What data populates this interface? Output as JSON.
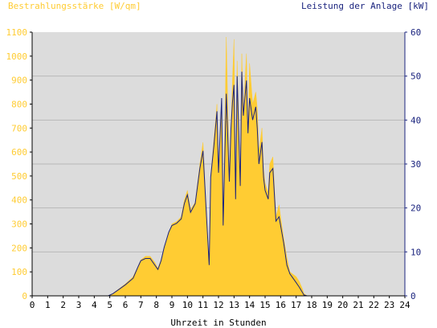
{
  "colors": {
    "irradiance": "#ffcc33",
    "power": "#1a237e",
    "plot_bg": "#dcdcdc",
    "grid": "#b8b8b8",
    "axis": "#000000"
  },
  "chart_data": {
    "type": "area",
    "left_axis_title": "Bestrahlungsstärke [W/qm]",
    "right_axis_title": "Leistung der Anlage [kW]",
    "xlabel": "Uhrzeit in Stunden",
    "xlim": [
      0,
      24
    ],
    "ylim_left": [
      0,
      1100
    ],
    "ylim_right": [
      0,
      60
    ],
    "x_ticks": [
      "0",
      "1",
      "2",
      "3",
      "4",
      "5",
      "6",
      "7",
      "8",
      "9",
      "10",
      "11",
      "12",
      "13",
      "14",
      "15",
      "16",
      "17",
      "18",
      "19",
      "20",
      "21",
      "22",
      "23",
      "24"
    ],
    "y_left_ticks": [
      "0",
      "100",
      "200",
      "300",
      "400",
      "500",
      "600",
      "700",
      "800",
      "900",
      "1000",
      "1100"
    ],
    "y_right_ticks": [
      "0",
      "10",
      "20",
      "30",
      "40",
      "50",
      "60"
    ],
    "grid": true,
    "series": [
      {
        "name": "Bestrahlungsstärke [W/qm]",
        "axis": "left",
        "style": "area",
        "x": [
          0,
          4.9,
          5.2,
          5.6,
          6.0,
          6.5,
          6.8,
          7.0,
          7.3,
          7.6,
          7.9,
          8.1,
          8.3,
          8.5,
          8.8,
          9.0,
          9.3,
          9.6,
          9.8,
          10.0,
          10.2,
          10.5,
          10.8,
          11.0,
          11.2,
          11.4,
          11.5,
          11.7,
          11.9,
          12.0,
          12.2,
          12.3,
          12.5,
          12.7,
          12.8,
          12.9,
          13.0,
          13.1,
          13.2,
          13.4,
          13.5,
          13.6,
          13.8,
          13.9,
          14.0,
          14.2,
          14.4,
          14.5,
          14.6,
          14.8,
          14.9,
          15.0,
          15.2,
          15.3,
          15.5,
          15.7,
          15.9,
          16.0,
          16.2,
          16.4,
          16.6,
          16.8,
          17.0,
          17.2,
          17.4,
          17.5,
          17.7,
          17.9,
          18.0,
          18.2,
          18.4,
          18.5,
          18.7,
          19.0,
          19.3,
          19.6,
          20.0,
          20.3,
          20.6,
          21,
          24
        ],
        "y": [
          0,
          0,
          10,
          30,
          50,
          80,
          120,
          150,
          165,
          165,
          140,
          115,
          150,
          200,
          260,
          300,
          310,
          330,
          400,
          440,
          360,
          390,
          550,
          640,
          380,
          130,
          500,
          650,
          800,
          520,
          820,
          300,
          1080,
          480,
          700,
          900,
          1070,
          400,
          980,
          470,
          1010,
          760,
          1010,
          680,
          970,
          800,
          850,
          780,
          600,
          700,
          530,
          470,
          430,
          550,
          580,
          330,
          380,
          330,
          240,
          160,
          100,
          90,
          80,
          60,
          30,
          10,
          0,
          0,
          0,
          0,
          0,
          0,
          0,
          0,
          0,
          0,
          0,
          0,
          0,
          0,
          0
        ]
      },
      {
        "name": "Leistung der Anlage [kW]",
        "axis": "right",
        "style": "line",
        "x": [
          0,
          4.9,
          5.2,
          5.6,
          6.0,
          6.5,
          6.8,
          7.0,
          7.3,
          7.6,
          7.9,
          8.1,
          8.3,
          8.5,
          8.8,
          9.0,
          9.3,
          9.6,
          9.8,
          10.0,
          10.2,
          10.5,
          10.8,
          11.0,
          11.2,
          11.4,
          11.5,
          11.7,
          11.9,
          12.0,
          12.2,
          12.3,
          12.5,
          12.7,
          12.8,
          12.9,
          13.0,
          13.1,
          13.2,
          13.4,
          13.5,
          13.6,
          13.8,
          13.9,
          14.0,
          14.2,
          14.4,
          14.5,
          14.6,
          14.8,
          14.9,
          15.0,
          15.2,
          15.3,
          15.5,
          15.7,
          15.9,
          16.0,
          16.2,
          16.4,
          16.6,
          16.8,
          17.0,
          17.2,
          17.4,
          17.5,
          17.7,
          17.9,
          18.0,
          18.2,
          18.4,
          18.5,
          18.7,
          19.0,
          19.3,
          19.6,
          20.0,
          20.3,
          20.6,
          21,
          24
        ],
        "y": [
          0,
          0,
          0.5,
          1.5,
          2.5,
          4.0,
          6.5,
          8.0,
          8.5,
          8.5,
          7.0,
          6.0,
          8.0,
          11.0,
          14.5,
          16.0,
          16.5,
          17.5,
          21.0,
          23.0,
          19.0,
          21.0,
          29.0,
          33.0,
          20.0,
          7.0,
          27.0,
          34.0,
          42.0,
          28.0,
          45.0,
          16.0,
          46.0,
          26.0,
          38.0,
          44.0,
          48.0,
          22.0,
          50.0,
          25.0,
          51.0,
          41.0,
          49.0,
          37.0,
          45.0,
          40.0,
          43.0,
          38.0,
          30.0,
          35.0,
          27.0,
          24.0,
          22.0,
          28.0,
          29.0,
          17.0,
          18.0,
          16.0,
          12.0,
          7.0,
          5.0,
          4.0,
          3.0,
          2.0,
          0.8,
          0.2,
          0,
          0,
          0,
          0,
          0,
          0,
          0,
          0,
          0,
          0,
          0,
          0,
          0,
          0,
          0
        ]
      }
    ]
  }
}
